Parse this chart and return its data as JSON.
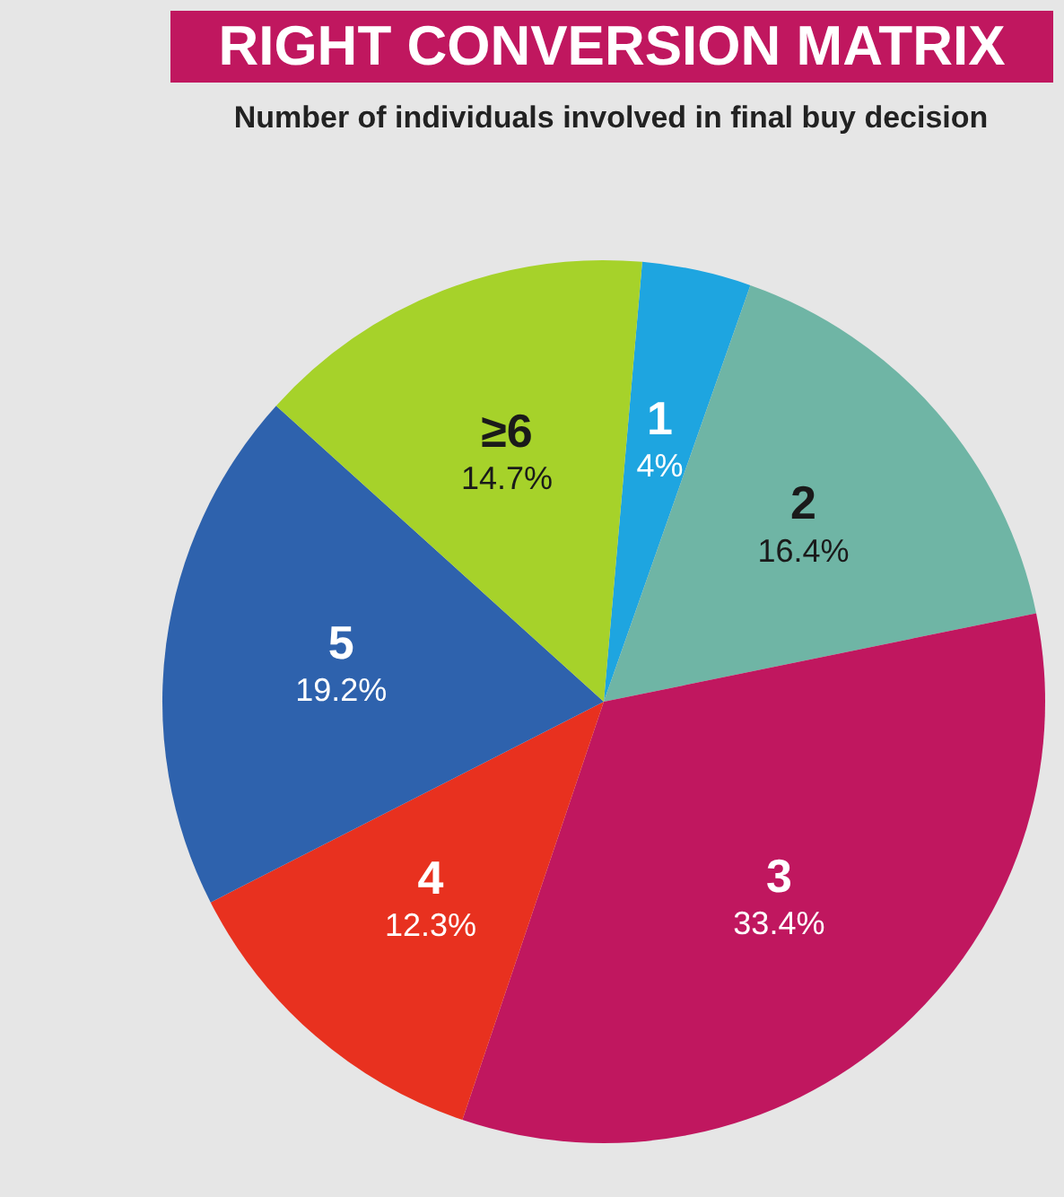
{
  "chart_data": {
    "type": "pie",
    "title": "RIGHT CONVERSION MATRIX",
    "subtitle": "Number of individuals involved in final buy decision",
    "categories": [
      "1",
      "2",
      "3",
      "4",
      "5",
      "≥6"
    ],
    "values": [
      4,
      16.4,
      33.4,
      12.3,
      19.2,
      14.7
    ],
    "value_labels": [
      "4%",
      "16.4%",
      "33.4%",
      "12.3%",
      "19.2%",
      "14.7%"
    ],
    "colors": [
      "#1ea5e0",
      "#6fb5a5",
      "#c0175f",
      "#e8311f",
      "#2e62ad",
      "#a6d22a"
    ],
    "legend": false
  }
}
